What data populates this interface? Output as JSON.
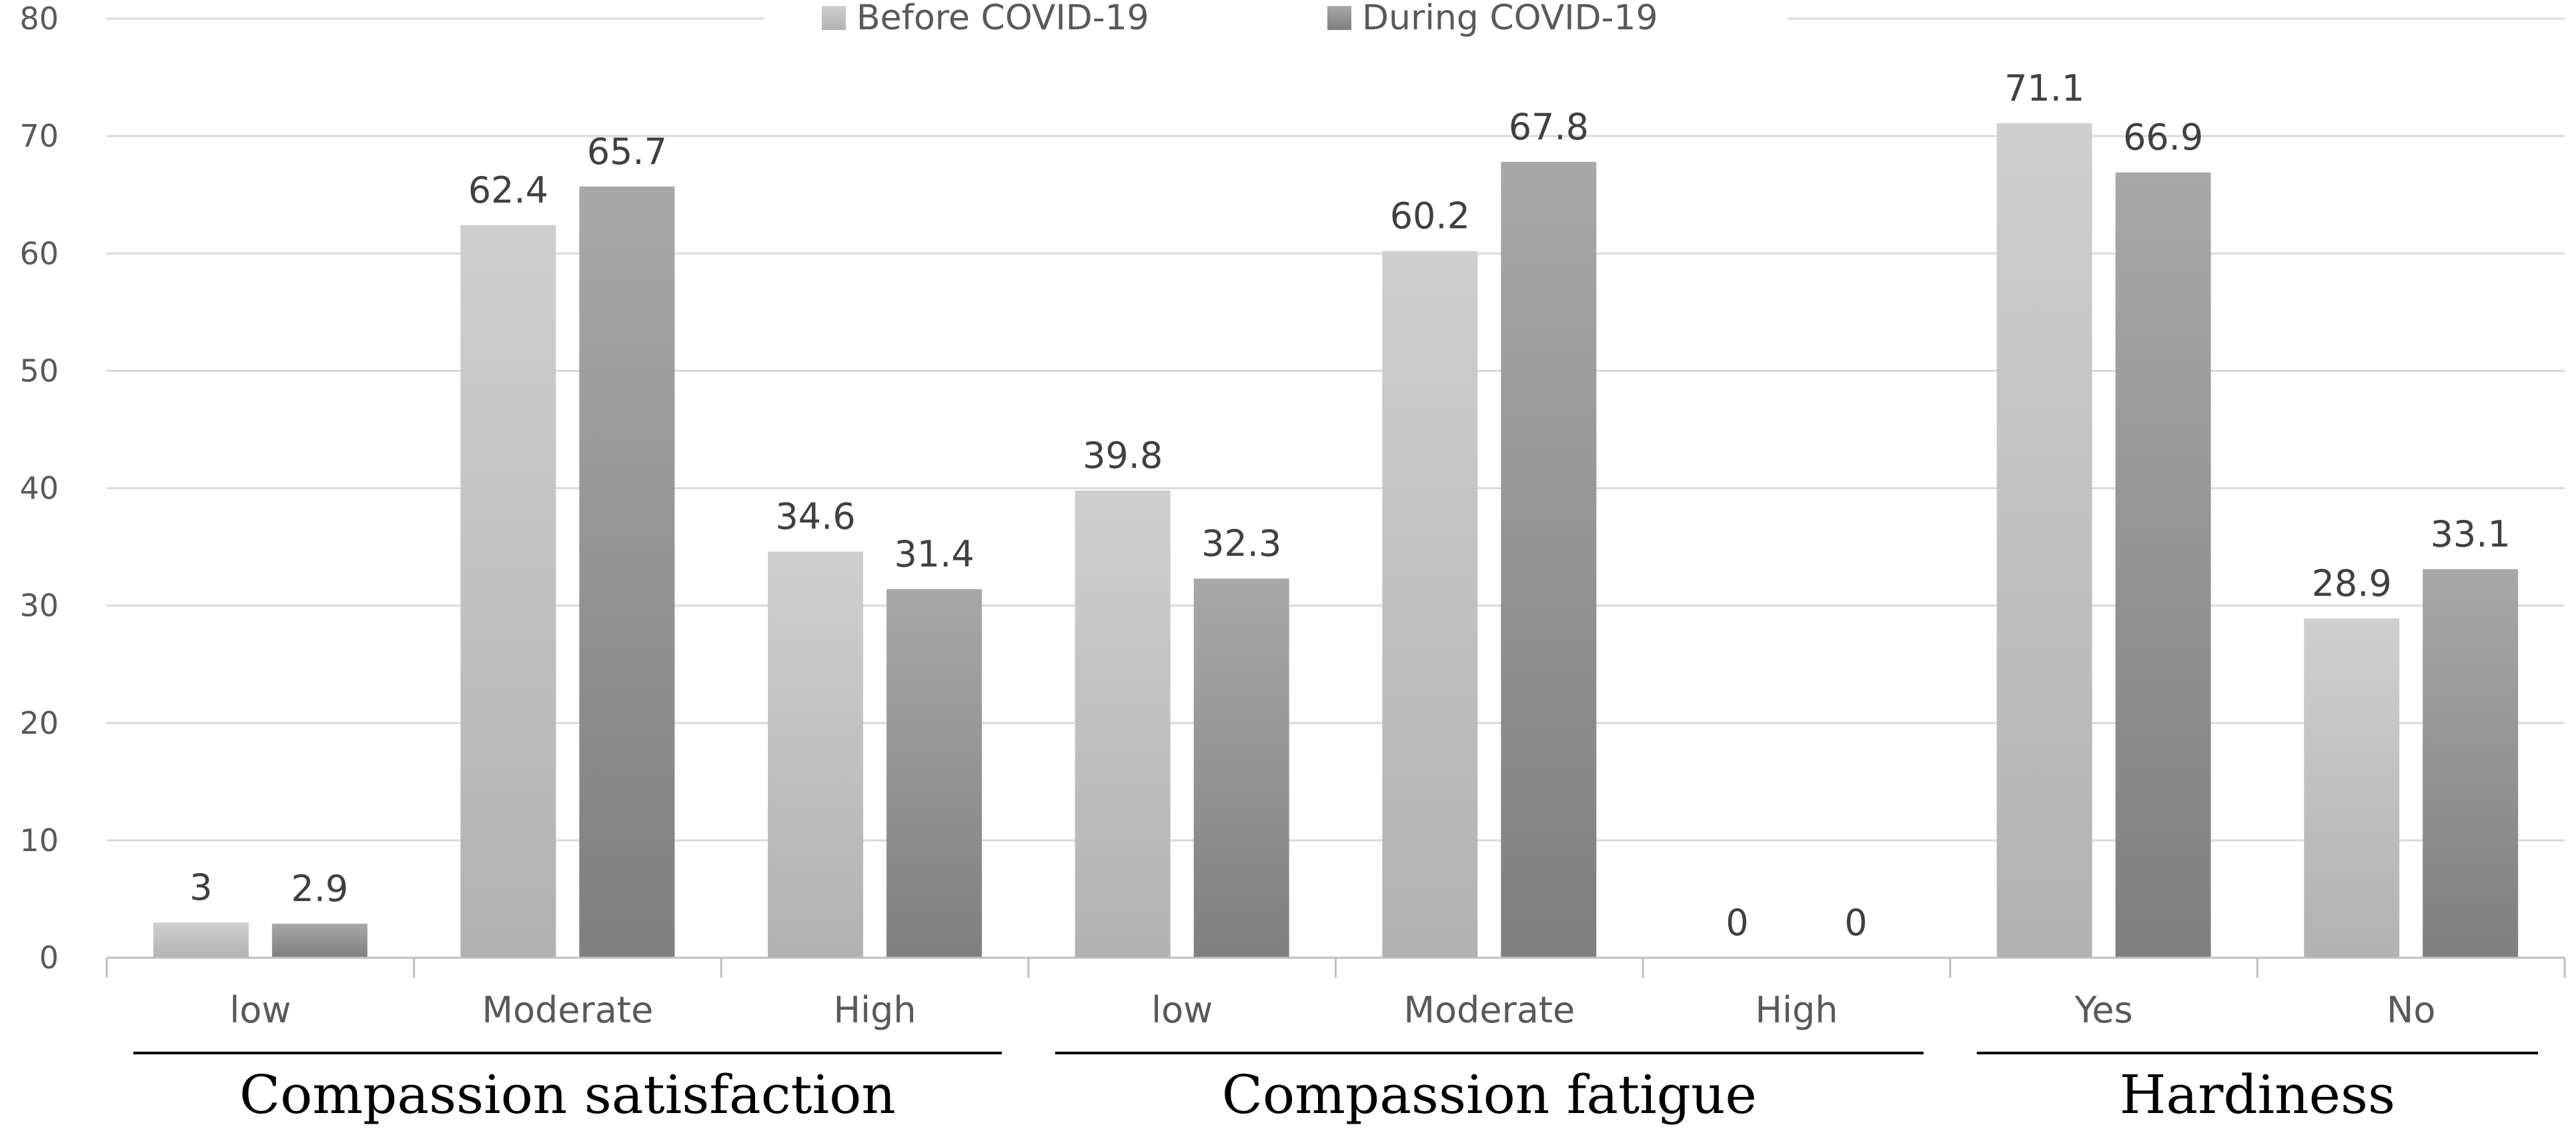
{
  "chart_data": {
    "type": "bar",
    "title": "",
    "xlabel": "",
    "ylabel": "",
    "ylim": [
      0,
      80
    ],
    "yticks": [
      0,
      10,
      20,
      30,
      40,
      50,
      60,
      70,
      80
    ],
    "grid": true,
    "legend_position": "top-center",
    "categories": [
      "low",
      "Moderate",
      "High",
      "low",
      "Moderate",
      "High",
      "Yes",
      "No"
    ],
    "groups": [
      {
        "label": "Compassion satisfaction",
        "categories": [
          0,
          1,
          2
        ]
      },
      {
        "label": "Compassion fatigue",
        "categories": [
          3,
          4,
          5
        ]
      },
      {
        "label": "Hardiness",
        "categories": [
          6,
          7
        ]
      }
    ],
    "series": [
      {
        "name": "Before COVID-19",
        "values": [
          3,
          62.4,
          34.6,
          39.8,
          60.2,
          0,
          71.1,
          28.9
        ],
        "labels": [
          "3",
          "62.4",
          "34.6",
          "39.8",
          "60.2",
          "0",
          "71.1",
          "28.9"
        ],
        "color_top": "#cfcfcf",
        "color_bottom": "#b2b2b2"
      },
      {
        "name": "During COVID-19",
        "values": [
          2.9,
          65.7,
          31.4,
          32.3,
          67.8,
          0,
          66.9,
          33.1
        ],
        "labels": [
          "2.9",
          "65.7",
          "31.4",
          "32.3",
          "67.8",
          "0",
          "66.9",
          "33.1"
        ],
        "color_top": "#a8a8a8",
        "color_bottom": "#7f7f7f"
      }
    ]
  }
}
